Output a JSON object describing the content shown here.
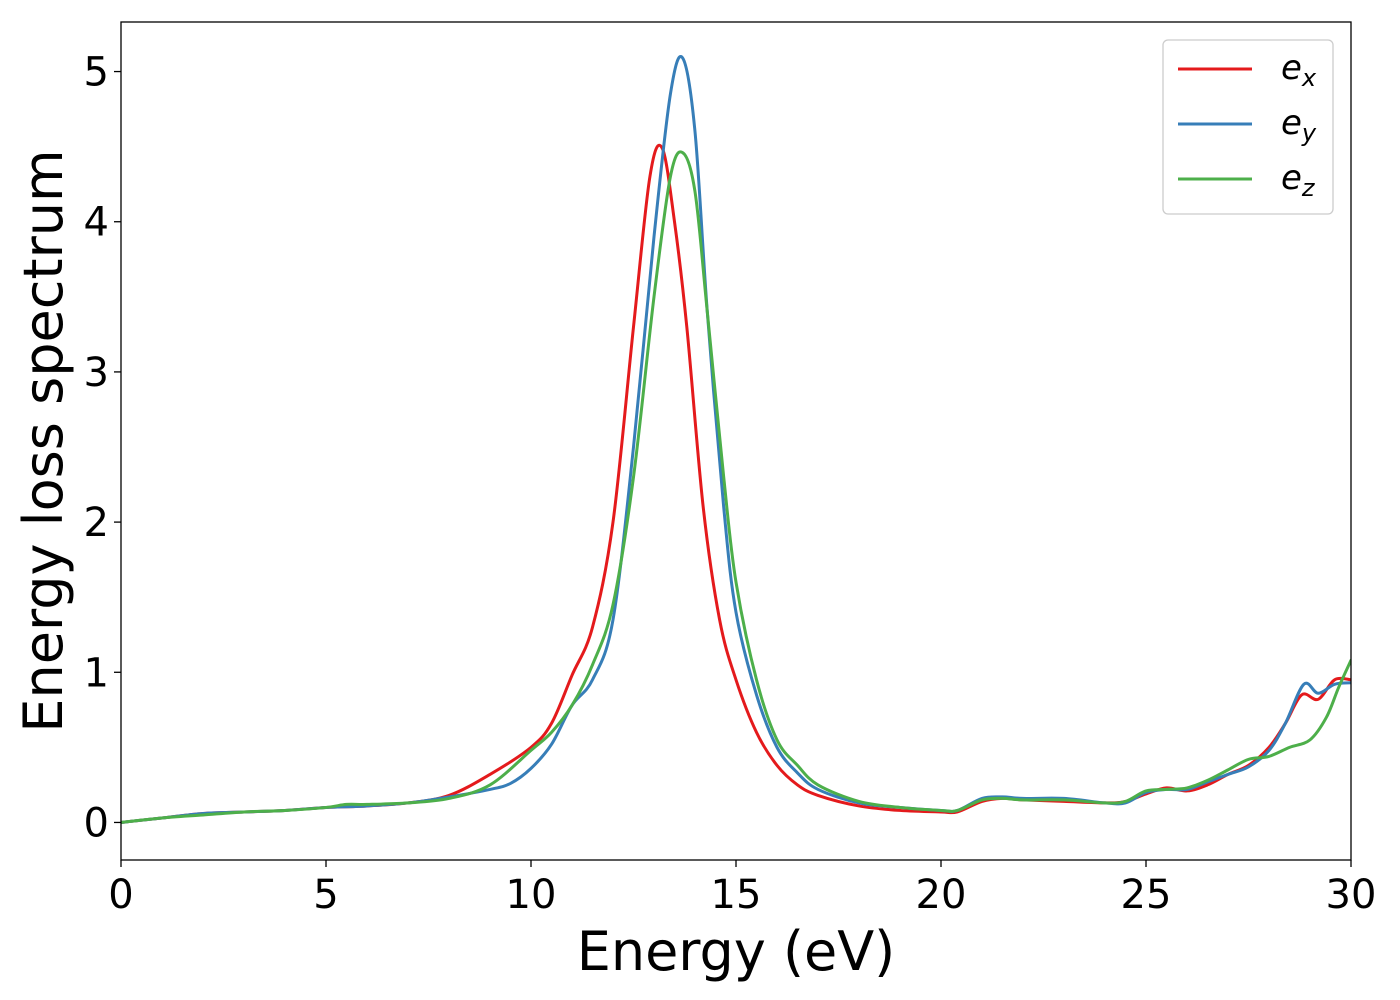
{
  "chart_data": {
    "type": "line",
    "title": "",
    "xlabel": "Energy (eV)",
    "ylabel": "Energy loss spectrum",
    "xlim": [
      0,
      30
    ],
    "ylim": [
      -0.25,
      5.33
    ],
    "xticks": [
      0,
      5,
      10,
      15,
      20,
      25,
      30
    ],
    "xtick_labels": [
      "0",
      "5",
      "10",
      "15",
      "20",
      "25",
      "30"
    ],
    "yticks": [
      0,
      1,
      2,
      3,
      4,
      5
    ],
    "ytick_labels": [
      "0",
      "1",
      "2",
      "3",
      "4",
      "5"
    ],
    "grid": false,
    "legend": "top-right",
    "series": [
      {
        "name": "e",
        "sub": "x",
        "color": "#e41a1c",
        "points": [
          [
            0,
            0
          ],
          [
            1,
            0.03
          ],
          [
            2,
            0.06
          ],
          [
            3,
            0.07
          ],
          [
            4,
            0.08
          ],
          [
            5,
            0.1
          ],
          [
            6,
            0.11
          ],
          [
            7,
            0.13
          ],
          [
            8,
            0.18
          ],
          [
            9,
            0.32
          ],
          [
            10,
            0.5
          ],
          [
            10.5,
            0.66
          ],
          [
            11,
            0.98
          ],
          [
            11.5,
            1.3
          ],
          [
            12,
            2
          ],
          [
            12.5,
            3.3
          ],
          [
            12.9,
            4.3
          ],
          [
            13.2,
            4.49
          ],
          [
            13.5,
            4
          ],
          [
            13.8,
            3.3
          ],
          [
            14.2,
            2.1
          ],
          [
            14.6,
            1.35
          ],
          [
            15,
            0.95
          ],
          [
            15.5,
            0.6
          ],
          [
            16,
            0.38
          ],
          [
            16.5,
            0.25
          ],
          [
            17,
            0.18
          ],
          [
            18,
            0.11
          ],
          [
            19,
            0.08
          ],
          [
            20,
            0.07
          ],
          [
            20.4,
            0.07
          ],
          [
            21,
            0.14
          ],
          [
            21.5,
            0.16
          ],
          [
            22,
            0.15
          ],
          [
            23,
            0.14
          ],
          [
            24,
            0.13
          ],
          [
            24.5,
            0.14
          ],
          [
            25,
            0.19
          ],
          [
            25.5,
            0.23
          ],
          [
            26,
            0.21
          ],
          [
            26.5,
            0.25
          ],
          [
            27,
            0.32
          ],
          [
            27.5,
            0.38
          ],
          [
            28,
            0.5
          ],
          [
            28.4,
            0.66
          ],
          [
            28.8,
            0.85
          ],
          [
            29.2,
            0.82
          ],
          [
            29.6,
            0.95
          ],
          [
            30,
            0.95
          ]
        ]
      },
      {
        "name": "e",
        "sub": "y",
        "color": "#377eb8",
        "points": [
          [
            0,
            0
          ],
          [
            1,
            0.03
          ],
          [
            2,
            0.06
          ],
          [
            3,
            0.07
          ],
          [
            4,
            0.08
          ],
          [
            5,
            0.1
          ],
          [
            6,
            0.11
          ],
          [
            7,
            0.13
          ],
          [
            8,
            0.17
          ],
          [
            9,
            0.22
          ],
          [
            9.5,
            0.26
          ],
          [
            10,
            0.36
          ],
          [
            10.5,
            0.52
          ],
          [
            11,
            0.78
          ],
          [
            11.5,
            0.95
          ],
          [
            12,
            1.35
          ],
          [
            12.5,
            2.5
          ],
          [
            13,
            3.9
          ],
          [
            13.4,
            4.85
          ],
          [
            13.7,
            5.09
          ],
          [
            14,
            4.6
          ],
          [
            14.3,
            3.4
          ],
          [
            14.7,
            2.1
          ],
          [
            15,
            1.4
          ],
          [
            15.5,
            0.85
          ],
          [
            16,
            0.5
          ],
          [
            16.5,
            0.33
          ],
          [
            17,
            0.22
          ],
          [
            18,
            0.13
          ],
          [
            19,
            0.1
          ],
          [
            20,
            0.08
          ],
          [
            20.4,
            0.08
          ],
          [
            21,
            0.16
          ],
          [
            21.5,
            0.17
          ],
          [
            22,
            0.16
          ],
          [
            23,
            0.16
          ],
          [
            24,
            0.13
          ],
          [
            24.5,
            0.13
          ],
          [
            25,
            0.2
          ],
          [
            25.5,
            0.22
          ],
          [
            26,
            0.22
          ],
          [
            26.5,
            0.27
          ],
          [
            27,
            0.32
          ],
          [
            27.5,
            0.37
          ],
          [
            28,
            0.48
          ],
          [
            28.4,
            0.66
          ],
          [
            28.85,
            0.92
          ],
          [
            29.2,
            0.86
          ],
          [
            29.6,
            0.92
          ],
          [
            30,
            0.93
          ]
        ]
      },
      {
        "name": "e",
        "sub": "z",
        "color": "#4daf4a",
        "points": [
          [
            0,
            0
          ],
          [
            1,
            0.03
          ],
          [
            2,
            0.05
          ],
          [
            3,
            0.07
          ],
          [
            4,
            0.08
          ],
          [
            5,
            0.1
          ],
          [
            5.5,
            0.12
          ],
          [
            6,
            0.12
          ],
          [
            7,
            0.13
          ],
          [
            8,
            0.16
          ],
          [
            9,
            0.25
          ],
          [
            10,
            0.48
          ],
          [
            10.5,
            0.6
          ],
          [
            11,
            0.78
          ],
          [
            11.5,
            1.05
          ],
          [
            12,
            1.45
          ],
          [
            12.5,
            2.3
          ],
          [
            13,
            3.5
          ],
          [
            13.4,
            4.3
          ],
          [
            13.7,
            4.46
          ],
          [
            14,
            4.2
          ],
          [
            14.3,
            3.4
          ],
          [
            14.7,
            2.3
          ],
          [
            15,
            1.6
          ],
          [
            15.5,
            0.95
          ],
          [
            16,
            0.55
          ],
          [
            16.5,
            0.38
          ],
          [
            17,
            0.25
          ],
          [
            18,
            0.14
          ],
          [
            19,
            0.1
          ],
          [
            20,
            0.08
          ],
          [
            20.4,
            0.08
          ],
          [
            21,
            0.15
          ],
          [
            21.5,
            0.16
          ],
          [
            22,
            0.15
          ],
          [
            23,
            0.15
          ],
          [
            24,
            0.13
          ],
          [
            24.5,
            0.14
          ],
          [
            25,
            0.21
          ],
          [
            25.5,
            0.22
          ],
          [
            26,
            0.23
          ],
          [
            26.5,
            0.28
          ],
          [
            27,
            0.35
          ],
          [
            27.5,
            0.42
          ],
          [
            28,
            0.44
          ],
          [
            28.5,
            0.5
          ],
          [
            29,
            0.55
          ],
          [
            29.4,
            0.7
          ],
          [
            29.7,
            0.9
          ],
          [
            30,
            1.08
          ]
        ]
      }
    ]
  }
}
